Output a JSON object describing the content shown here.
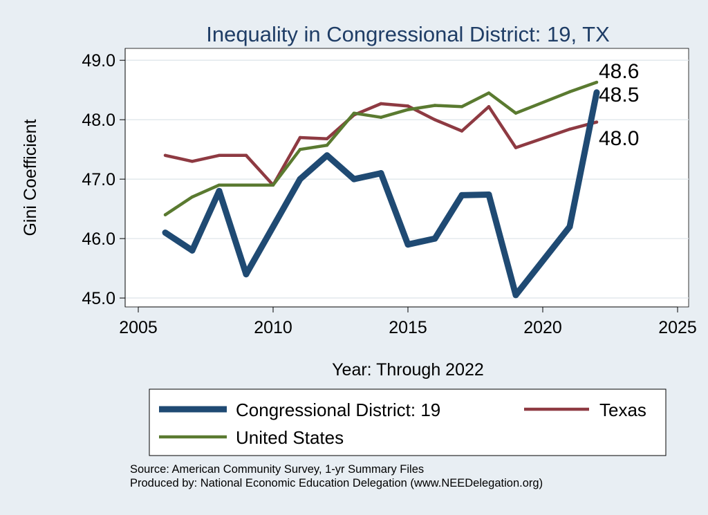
{
  "chart_data": {
    "type": "line",
    "title": "Inequality in Congressional District:  19, TX",
    "xlabel": "Year: Through 2022",
    "ylabel": "Gini Coefficient",
    "xlim": [
      2005,
      2025
    ],
    "ylim": [
      44.85,
      49.2
    ],
    "xticks": [
      2005,
      2010,
      2015,
      2020,
      2025
    ],
    "xtick_labels": [
      "2005",
      "2010",
      "2015",
      "2020",
      "2025"
    ],
    "yticks": [
      45,
      46,
      47,
      48,
      49
    ],
    "ytick_labels": [
      "45.0",
      "46.0",
      "47.0",
      "48.0",
      "49.0"
    ],
    "grid": true,
    "legend_position": "bottom",
    "series": [
      {
        "name": "Congressional District:  19",
        "color": "#1f4a73",
        "points": [
          [
            2006,
            46.1
          ],
          [
            2007,
            45.8
          ],
          [
            2008,
            46.8
          ],
          [
            2009,
            45.4
          ],
          [
            2011,
            47.0
          ],
          [
            2012,
            47.4
          ],
          [
            2013,
            47.0
          ],
          [
            2014,
            47.1
          ],
          [
            2015,
            45.9
          ],
          [
            2016,
            46.0
          ],
          [
            2017,
            46.73
          ],
          [
            2018,
            46.74
          ],
          [
            2019,
            45.05
          ],
          [
            2021,
            46.2
          ],
          [
            2022,
            48.46
          ]
        ],
        "end_label": "48.5"
      },
      {
        "name": "Texas",
        "color": "#8e3a42",
        "points": [
          [
            2006,
            47.4
          ],
          [
            2007,
            47.3
          ],
          [
            2008,
            47.4
          ],
          [
            2009,
            47.4
          ],
          [
            2010,
            46.9
          ],
          [
            2011,
            47.7
          ],
          [
            2012,
            47.68
          ],
          [
            2013,
            48.08
          ],
          [
            2014,
            48.27
          ],
          [
            2015,
            48.23
          ],
          [
            2016,
            48.0
          ],
          [
            2017,
            47.81
          ],
          [
            2018,
            48.22
          ],
          [
            2019,
            47.53
          ],
          [
            2021,
            47.84
          ],
          [
            2022,
            47.96
          ]
        ],
        "end_label": "48.0"
      },
      {
        "name": "United States",
        "color": "#5a7a30",
        "points": [
          [
            2006,
            46.4
          ],
          [
            2007,
            46.7
          ],
          [
            2008,
            46.9
          ],
          [
            2009,
            46.9
          ],
          [
            2010,
            46.9
          ],
          [
            2011,
            47.5
          ],
          [
            2012,
            47.57
          ],
          [
            2013,
            48.11
          ],
          [
            2014,
            48.04
          ],
          [
            2015,
            48.17
          ],
          [
            2016,
            48.24
          ],
          [
            2017,
            48.22
          ],
          [
            2018,
            48.45
          ],
          [
            2019,
            48.11
          ],
          [
            2021,
            48.47
          ],
          [
            2022,
            48.63
          ]
        ],
        "end_label": "48.6"
      }
    ]
  },
  "source_note": "Source: American Community Survey, 1-yr Summary Files",
  "producer_note": "Produced by: National Economic Education Delegation (www.NEEDelegation.org)"
}
